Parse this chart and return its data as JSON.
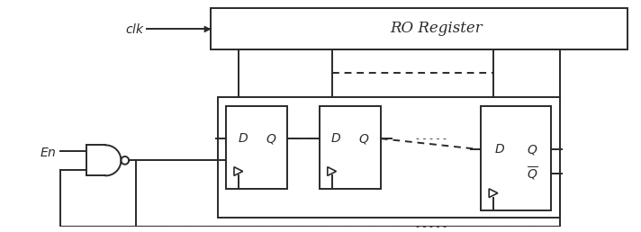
{
  "bg_color": "#ffffff",
  "line_color": "#2a2a2a",
  "line_width": 1.4,
  "fig_width": 7.12,
  "fig_height": 2.58,
  "clk_label": "$clk$",
  "en_label": "$En$",
  "ro_register_label": "RO Register",
  "d_label": "$D$",
  "q_label": "$Q$",
  "qbar_label": "$\\overline{Q}$",
  "dots_h": "- - - - -",
  "dots_v": "· · ·"
}
